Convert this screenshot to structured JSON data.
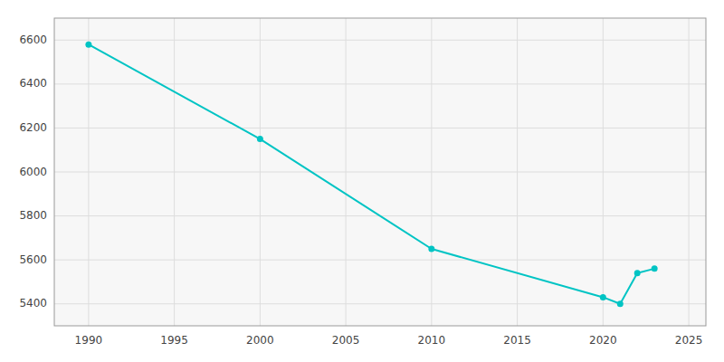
{
  "chart_data": {
    "type": "line",
    "x": [
      1990,
      2000,
      2010,
      2020,
      2021,
      2022,
      2023
    ],
    "values": [
      6580,
      6150,
      5650,
      5430,
      5400,
      5540,
      5560
    ],
    "color": "#00C4C4",
    "marker": "circle",
    "xlim": [
      1988,
      2026
    ],
    "ylim": [
      5300,
      6700
    ],
    "xticks": [
      1990,
      1995,
      2000,
      2005,
      2010,
      2015,
      2020,
      2025
    ],
    "yticks": [
      5400,
      5600,
      5800,
      6000,
      6200,
      6400,
      6600
    ],
    "grid": true
  }
}
